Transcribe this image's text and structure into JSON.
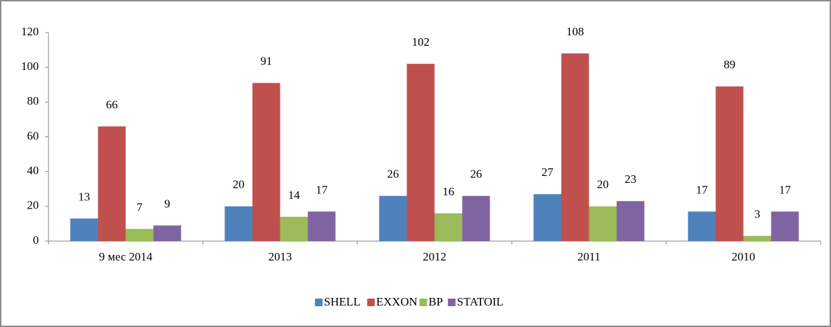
{
  "chart_data": {
    "type": "bar",
    "categories": [
      "9 мес 2014",
      "2013",
      "2012",
      "2011",
      "2010"
    ],
    "series": [
      {
        "name": "SHELL",
        "color": "#4f81bd",
        "values": [
          13,
          20,
          26,
          27,
          17
        ]
      },
      {
        "name": "EXXON",
        "color": "#c0504d",
        "values": [
          66,
          91,
          102,
          108,
          89
        ]
      },
      {
        "name": "BP",
        "color": "#9bbb59",
        "values": [
          7,
          14,
          16,
          20,
          3
        ]
      },
      {
        "name": "STATOIL",
        "color": "#8064a2",
        "values": [
          9,
          17,
          26,
          23,
          17
        ]
      }
    ],
    "ylim": [
      0,
      120
    ],
    "yticks": [
      0,
      20,
      40,
      60,
      80,
      100,
      120
    ],
    "grid": false,
    "legend": "bottom"
  }
}
